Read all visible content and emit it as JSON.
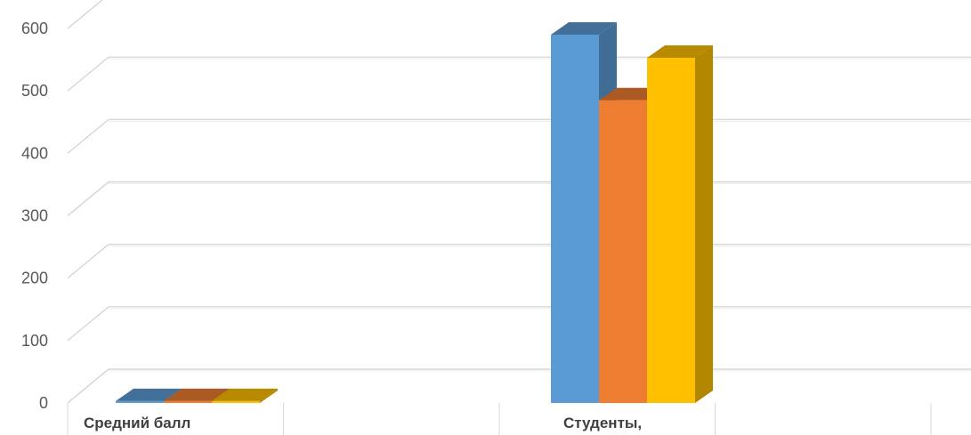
{
  "chart_data": {
    "type": "bar",
    "title": "",
    "xlabel": "",
    "ylabel": "",
    "categories": [
      "Средний балл",
      "Студенты,"
    ],
    "series": [
      {
        "values": [
          3,
          590
        ],
        "color": "#5B9BD5"
      },
      {
        "values": [
          3,
          485
        ],
        "color": "#ED7D31"
      },
      {
        "values": [
          3,
          553
        ],
        "color": "#FFC000"
      }
    ],
    "ylim": [
      0,
      600
    ],
    "yticks": [
      0,
      100,
      200,
      300,
      400,
      500,
      600
    ],
    "grid": true,
    "three_d": true,
    "legend": "none"
  }
}
